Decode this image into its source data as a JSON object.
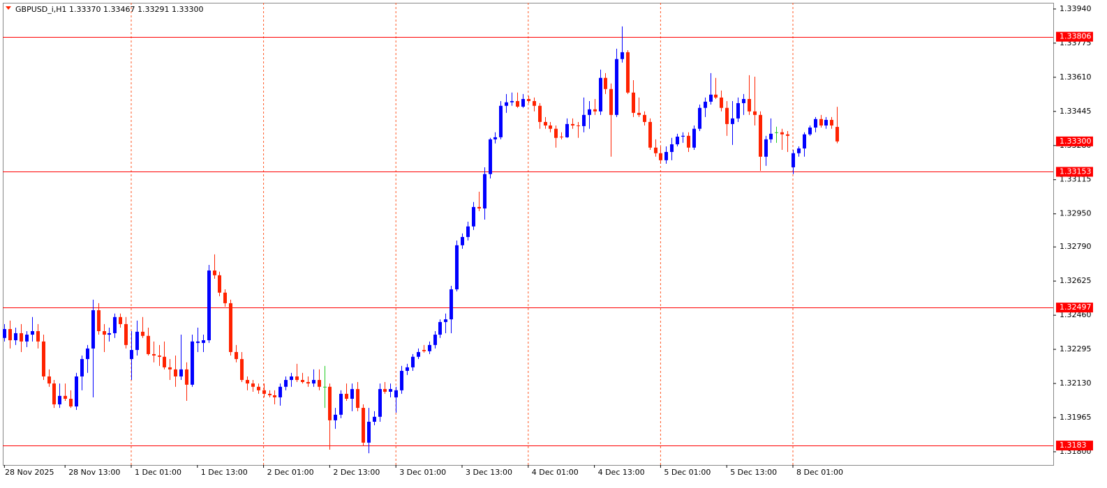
{
  "chart_data": {
    "type": "candlestick",
    "title": "GBPUSD_i,H1  1.33370 1.33467 1.33291 1.33300",
    "categories": [
      "28 Nov 2025",
      null,
      null,
      null,
      null,
      null,
      null,
      null,
      null,
      null,
      null,
      "28 Nov 13:00",
      null,
      null,
      null,
      null,
      null,
      null,
      null,
      null,
      null,
      null,
      null,
      "1 Dec 01:00",
      null,
      null,
      null,
      null,
      null,
      null,
      null,
      null,
      null,
      null,
      null,
      "1 Dec 13:00",
      null,
      null,
      null,
      null,
      null,
      null,
      null,
      null,
      null,
      null,
      null,
      "2 Dec 01:00",
      null,
      null,
      null,
      null,
      null,
      null,
      null,
      null,
      null,
      null,
      null,
      "2 Dec 13:00",
      null,
      null,
      null,
      null,
      null,
      null,
      null,
      null,
      null,
      null,
      null,
      "3 Dec 01:00",
      null,
      null,
      null,
      null,
      null,
      null,
      null,
      null,
      null,
      null,
      null,
      "3 Dec 13:00",
      null,
      null,
      null,
      null,
      null,
      null,
      null,
      null,
      null,
      null,
      null,
      "4 Dec 01:00",
      null,
      null,
      null,
      null,
      null,
      null,
      null,
      null,
      null,
      null,
      null,
      "4 Dec 13:00",
      null,
      null,
      null,
      null,
      null,
      null,
      null,
      null,
      null,
      null,
      null,
      "5 Dec 01:00",
      null,
      null,
      null,
      null,
      null,
      null,
      null,
      null,
      null,
      null,
      null,
      "5 Dec 13:00",
      null,
      null,
      null,
      null,
      null,
      null,
      null,
      null,
      null,
      null,
      null,
      "8 Dec 01:00",
      null,
      null,
      null,
      null,
      null,
      null,
      null,
      null
    ],
    "open": [
      1.3235,
      1.32393,
      1.32339,
      1.32373,
      1.32333,
      1.32366,
      1.32383,
      1.32333,
      1.32164,
      1.3213,
      1.32029,
      1.3207,
      1.32056,
      1.32019,
      1.32164,
      1.32248,
      1.32299,
      1.32484,
      1.32383,
      1.32366,
      1.32373,
      1.32451,
      1.32417,
      1.32248,
      1.32292,
      1.3238,
      1.3236,
      1.32272,
      1.32265,
      1.32259,
      1.32208,
      1.32198,
      1.32164,
      1.32198,
      1.32124,
      1.32326,
      1.32326,
      1.32339,
      1.32676,
      1.32653,
      1.32569,
      1.32518,
      1.32282,
      1.32248,
      1.32147,
      1.3213,
      1.32114,
      1.32097,
      1.3208,
      1.32073,
      1.32063,
      1.32114,
      1.32147,
      1.32164,
      1.32147,
      1.32137,
      1.3213,
      1.32147,
      1.32114,
      1.32114,
      1.31952,
      1.31979,
      1.3208,
      1.32056,
      1.32103,
      1.32012,
      1.31844,
      1.31945,
      1.31969,
      1.32103,
      1.3209,
      1.32063,
      1.32097,
      1.32191,
      1.32208,
      1.32259,
      1.32292,
      1.32286,
      1.32316,
      1.32366,
      1.32427,
      1.3244,
      1.32585,
      1.32798,
      1.32838,
      1.32889,
      1.32983,
      1.32976,
      1.33142,
      1.3331,
      1.3332,
      1.33472,
      1.33489,
      1.33495,
      1.33468,
      1.33505,
      1.33495,
      1.33472,
      1.33394,
      1.33377,
      1.33361,
      1.33323,
      1.3332,
      1.33384,
      1.33377,
      1.33374,
      1.33428,
      1.33455,
      1.33445,
      1.33607,
      1.33553,
      1.33428,
      1.33698,
      1.33731,
      1.33536,
      1.33438,
      1.33428,
      1.33394,
      1.3327,
      1.33243,
      1.33209,
      1.33249,
      1.33286,
      1.33323,
      1.33327,
      1.3327,
      1.33361,
      1.33462,
      1.33492,
      1.33526,
      1.33512,
      1.33462,
      1.33384,
      1.33411,
      1.33485,
      1.33505,
      1.33445,
      1.33428,
      1.33226,
      1.3331,
      1.33344,
      1.33344,
      1.33334,
      1.33175,
      1.33243,
      1.33266,
      1.33334,
      1.33367,
      1.33408,
      1.33377,
      1.33404,
      1.3337
    ],
    "high": [
      1.32417,
      1.32434,
      1.324,
      1.32417,
      1.32383,
      1.32451,
      1.32417,
      1.32366,
      1.32198,
      1.32147,
      1.3213,
      1.3213,
      1.32097,
      1.32181,
      1.32265,
      1.32316,
      1.32535,
      1.32518,
      1.32417,
      1.324,
      1.32468,
      1.32468,
      1.32451,
      1.32383,
      1.32434,
      1.32451,
      1.324,
      1.32333,
      1.32316,
      1.32333,
      1.32248,
      1.32265,
      1.32366,
      1.32232,
      1.32366,
      1.324,
      1.32366,
      1.32703,
      1.32754,
      1.3267,
      1.32585,
      1.32535,
      1.32316,
      1.32282,
      1.32164,
      1.32147,
      1.3213,
      1.3213,
      1.32097,
      1.32097,
      1.3213,
      1.32164,
      1.32181,
      1.32225,
      1.32181,
      1.32164,
      1.32198,
      1.32198,
      1.32215,
      1.3213,
      1.32012,
      1.32097,
      1.3213,
      1.3213,
      1.32137,
      1.32029,
      1.32012,
      1.31996,
      1.3213,
      1.32137,
      1.3213,
      1.32114,
      1.32215,
      1.32225,
      1.32272,
      1.32299,
      1.32316,
      1.32333,
      1.32383,
      1.3244,
      1.32468,
      1.32602,
      1.32821,
      1.32855,
      1.32912,
      1.33007,
      1.33057,
      1.33175,
      1.33317,
      1.33344,
      1.33495,
      1.33529,
      1.33536,
      1.33536,
      1.33529,
      1.33519,
      1.33512,
      1.33485,
      1.33418,
      1.33394,
      1.33377,
      1.33344,
      1.33411,
      1.33411,
      1.33394,
      1.33512,
      1.33495,
      1.33505,
      1.33647,
      1.3363,
      1.3358,
      1.33748,
      1.33856,
      1.33741,
      1.33596,
      1.33512,
      1.33445,
      1.33411,
      1.3331,
      1.33276,
      1.33276,
      1.33317,
      1.33337,
      1.33344,
      1.33344,
      1.33377,
      1.33478,
      1.33512,
      1.3363,
      1.33607,
      1.33546,
      1.33495,
      1.33495,
      1.33512,
      1.33529,
      1.3362,
      1.33613,
      1.33445,
      1.33327,
      1.33411,
      1.33371,
      1.33361,
      1.3335,
      1.33259,
      1.33276,
      1.33344,
      1.33377,
      1.33418,
      1.33428,
      1.33418,
      1.33418,
      1.33467
    ],
    "low": [
      1.32333,
      1.32299,
      1.32316,
      1.32282,
      1.32306,
      1.32333,
      1.32299,
      1.32147,
      1.32114,
      1.32012,
      1.32012,
      1.32046,
      1.32012,
      1.32002,
      1.32097,
      1.32181,
      1.32063,
      1.32366,
      1.32282,
      1.32333,
      1.3235,
      1.324,
      1.32299,
      1.32147,
      1.32265,
      1.3235,
      1.32265,
      1.32232,
      1.32215,
      1.32198,
      1.32147,
      1.32114,
      1.32147,
      1.32046,
      1.32114,
      1.32282,
      1.32282,
      1.32326,
      1.32636,
      1.32552,
      1.32501,
      1.32265,
      1.32232,
      1.32137,
      1.32097,
      1.3209,
      1.3208,
      1.32063,
      1.32063,
      1.32029,
      1.32023,
      1.32097,
      1.32114,
      1.32137,
      1.3213,
      1.32114,
      1.32114,
      1.32097,
      1.32012,
      1.3181,
      1.31911,
      1.31962,
      1.32046,
      1.31996,
      1.31996,
      1.31827,
      1.31793,
      1.31928,
      1.31945,
      1.3208,
      1.32063,
      1.31989,
      1.3208,
      1.32171,
      1.32191,
      1.32248,
      1.32279,
      1.32272,
      1.32299,
      1.3235,
      1.32373,
      1.32373,
      1.32575,
      1.32781,
      1.32821,
      1.32872,
      1.32963,
      1.32922,
      1.33121,
      1.3329,
      1.3331,
      1.33438,
      1.33472,
      1.33462,
      1.33462,
      1.33485,
      1.33445,
      1.33361,
      1.33361,
      1.33344,
      1.3327,
      1.3331,
      1.33317,
      1.33361,
      1.33317,
      1.33344,
      1.33361,
      1.33428,
      1.33428,
      1.33529,
      1.33226,
      1.33418,
      1.33681,
      1.33529,
      1.33418,
      1.33418,
      1.33377,
      1.33259,
      1.33226,
      1.33192,
      1.33192,
      1.33209,
      1.33276,
      1.33293,
      1.33249,
      1.33259,
      1.3335,
      1.33418,
      1.33478,
      1.33505,
      1.33445,
      1.33327,
      1.33283,
      1.33394,
      1.33428,
      1.33428,
      1.33377,
      1.33158,
      1.33182,
      1.33293,
      1.33293,
      1.33259,
      1.33249,
      1.33142,
      1.33226,
      1.33226,
      1.33327,
      1.33344,
      1.33367,
      1.33361,
      1.33361,
      1.33291
    ],
    "close": [
      1.32393,
      1.32339,
      1.32373,
      1.32333,
      1.32366,
      1.32383,
      1.32333,
      1.32164,
      1.3213,
      1.32029,
      1.3207,
      1.32056,
      1.32019,
      1.32164,
      1.32248,
      1.32299,
      1.32484,
      1.32383,
      1.32366,
      1.32373,
      1.32451,
      1.32417,
      1.32316,
      1.32292,
      1.3238,
      1.3236,
      1.32272,
      1.32265,
      1.32259,
      1.32208,
      1.32198,
      1.32164,
      1.32198,
      1.32124,
      1.32333,
      1.32333,
      1.32339,
      1.32676,
      1.32653,
      1.32569,
      1.32518,
      1.32282,
      1.32248,
      1.32147,
      1.3213,
      1.32114,
      1.32097,
      1.3208,
      1.32073,
      1.32063,
      1.32114,
      1.32147,
      1.32164,
      1.32147,
      1.32137,
      1.3213,
      1.32147,
      1.32114,
      1.32114,
      1.31952,
      1.31979,
      1.3208,
      1.32056,
      1.32103,
      1.32012,
      1.31844,
      1.31945,
      1.31969,
      1.32103,
      1.3209,
      1.32103,
      1.32097,
      1.32191,
      1.32208,
      1.32259,
      1.32282,
      1.32286,
      1.32316,
      1.32366,
      1.32427,
      1.3244,
      1.32585,
      1.32798,
      1.32838,
      1.32889,
      1.32983,
      1.32976,
      1.33142,
      1.3331,
      1.3332,
      1.33472,
      1.33489,
      1.33495,
      1.33468,
      1.33505,
      1.33495,
      1.33472,
      1.33394,
      1.33377,
      1.33361,
      1.33317,
      1.3332,
      1.33384,
      1.33377,
      1.33374,
      1.33428,
      1.33455,
      1.33445,
      1.33607,
      1.33553,
      1.33428,
      1.33698,
      1.33731,
      1.33536,
      1.33438,
      1.33428,
      1.33394,
      1.3327,
      1.33243,
      1.33209,
      1.33249,
      1.33286,
      1.33323,
      1.33327,
      1.3327,
      1.33361,
      1.33462,
      1.33492,
      1.33526,
      1.33512,
      1.33462,
      1.33384,
      1.33411,
      1.33485,
      1.33505,
      1.33445,
      1.33428,
      1.33226,
      1.3331,
      1.33337,
      1.33344,
      1.33334,
      1.33327,
      1.33243,
      1.33266,
      1.33334,
      1.33367,
      1.33408,
      1.33377,
      1.33404,
      1.33377,
      1.333
    ],
    "ylim": [
      1.31736,
      1.3397
    ],
    "yticks": [
      {
        "value": 1.3394,
        "label": "1.33940"
      },
      {
        "value": 1.33775,
        "label": "1.33775"
      },
      {
        "value": 1.3361,
        "label": "1.33610"
      },
      {
        "value": 1.33445,
        "label": "1.33445"
      },
      {
        "value": 1.3328,
        "label": "1.33280"
      },
      {
        "value": 1.33115,
        "label": "1.33115"
      },
      {
        "value": 1.3295,
        "label": "1.32950"
      },
      {
        "value": 1.3279,
        "label": "1.32790"
      },
      {
        "value": 1.32625,
        "label": "1.32625"
      },
      {
        "value": 1.3246,
        "label": "1.32460"
      },
      {
        "value": 1.32295,
        "label": "1.32295"
      },
      {
        "value": 1.3213,
        "label": "1.32130"
      },
      {
        "value": 1.31965,
        "label": "1.31965"
      },
      {
        "value": 1.318,
        "label": "1.31800"
      }
    ],
    "levels": [
      1.33806,
      1.33153,
      1.32497,
      1.3183
    ],
    "current_price": {
      "value": 1.333,
      "label": "1.33300"
    },
    "colors": {
      "up": "#0000ff",
      "down": "#ff2200",
      "doji": "#22cc22",
      "level": "#ff0000",
      "grid": "#ff5522"
    },
    "grid": true
  }
}
